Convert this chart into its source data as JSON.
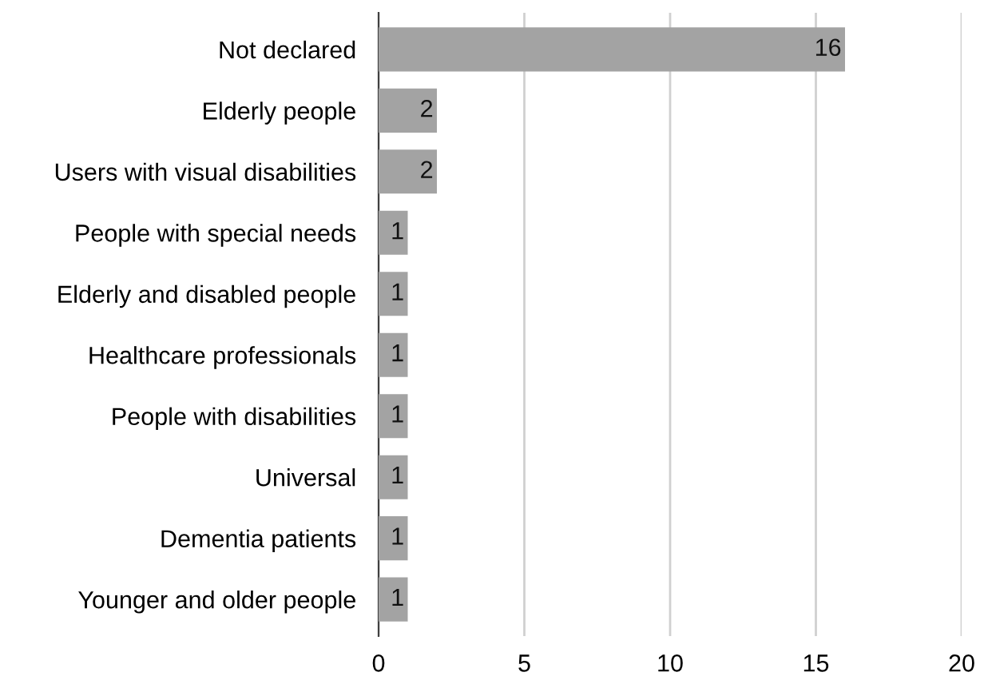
{
  "chart_data": {
    "type": "bar",
    "orientation": "horizontal",
    "categories": [
      "Not declared",
      "Elderly people",
      "Users with visual disabilities",
      "People with special needs",
      "Elderly and disabled people",
      "Healthcare professionals",
      "People with disabilities",
      "Universal",
      "Dementia patients",
      "Younger and older people"
    ],
    "values": [
      16,
      2,
      2,
      1,
      1,
      1,
      1,
      1,
      1,
      1
    ],
    "color": "#a3a3a3",
    "xlim": [
      0,
      20
    ],
    "xticks": [
      0,
      5,
      10,
      15,
      20
    ],
    "grid": "x",
    "data_labels": true,
    "legend": false
  }
}
